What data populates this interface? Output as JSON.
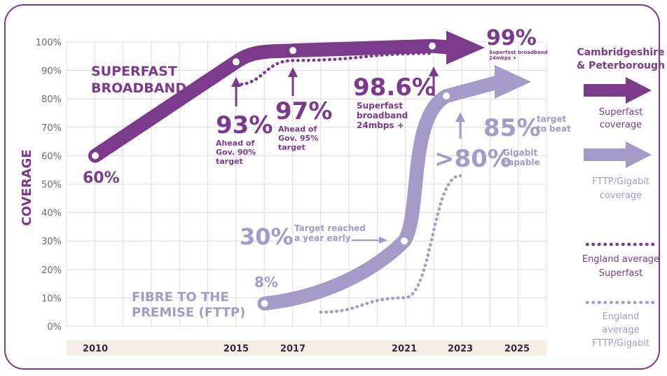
{
  "colors": {
    "superfast": "#7b3a8c",
    "fttp": "#a49bc8",
    "england_superfast": "#7b3a8c",
    "england_fttp": "#a49bc8",
    "frame": "#7b3a8c"
  },
  "chart_data": {
    "type": "line",
    "ylabel": "COVERAGE",
    "ylim": [
      0,
      100
    ],
    "y_ticks": [
      "0%",
      "10%",
      "20%",
      "30%",
      "40%",
      "50%",
      "60%",
      "70%",
      "80%",
      "90%",
      "100%"
    ],
    "x_ticks": [
      "2010",
      "2015",
      "2017",
      "2021",
      "2023",
      "2025"
    ],
    "series": [
      {
        "name": "Superfast coverage",
        "x": [
          2010,
          2015,
          2017,
          2022,
          2023
        ],
        "y": [
          60,
          93,
          97,
          98.6,
          99
        ]
      },
      {
        "name": "FTTP/Gigabit coverage",
        "x": [
          2016,
          2021,
          2022.5,
          2025
        ],
        "y": [
          8,
          30,
          81,
          86
        ]
      },
      {
        "name": "England average Superfast",
        "x": [
          2015,
          2017,
          2022
        ],
        "y": [
          85,
          93.5,
          96
        ]
      },
      {
        "name": "England average FTTP/Gigabit",
        "x": [
          2018,
          2021,
          2023
        ],
        "y": [
          5,
          10,
          53
        ]
      }
    ],
    "annotations": {
      "superfast_title": [
        "SUPERFAST",
        "BROADBAND"
      ],
      "fttp_title": [
        "FIBRE TO THE",
        "PREMISE (FTTP)"
      ],
      "p60": "60%",
      "p93": "93%",
      "p93_note": [
        "Ahead of",
        "Gov. 90%",
        "target"
      ],
      "p97": "97%",
      "p97_note": [
        "Ahead of",
        "Gov. 95%",
        "target"
      ],
      "p986": "98.6%",
      "p986_note": [
        "Superfast",
        "broadband",
        "24mbps +"
      ],
      "p99": "99%",
      "p99_note": [
        "Superfast broadband",
        "24mbps +"
      ],
      "p8": "8%",
      "p30": "30%",
      "p30_note": [
        "Target reached",
        "a year early"
      ],
      "p80": ">80%",
      "p80_note": [
        "Gigabit",
        "capable"
      ],
      "p85": "85%",
      "p85_note": [
        "target",
        "to beat"
      ]
    },
    "legend": {
      "title": [
        "Cambridgeshire",
        "& Peterborough"
      ],
      "superfast": [
        "Superfast",
        "coverage"
      ],
      "fttp": [
        "FTTP/Gigabit",
        "coverage"
      ],
      "eng_superfast": [
        "England average",
        "Superfast"
      ],
      "eng_fttp": [
        "England",
        "average",
        "FTTP/Gigabit"
      ],
      "placement": "right"
    },
    "grid": true
  }
}
